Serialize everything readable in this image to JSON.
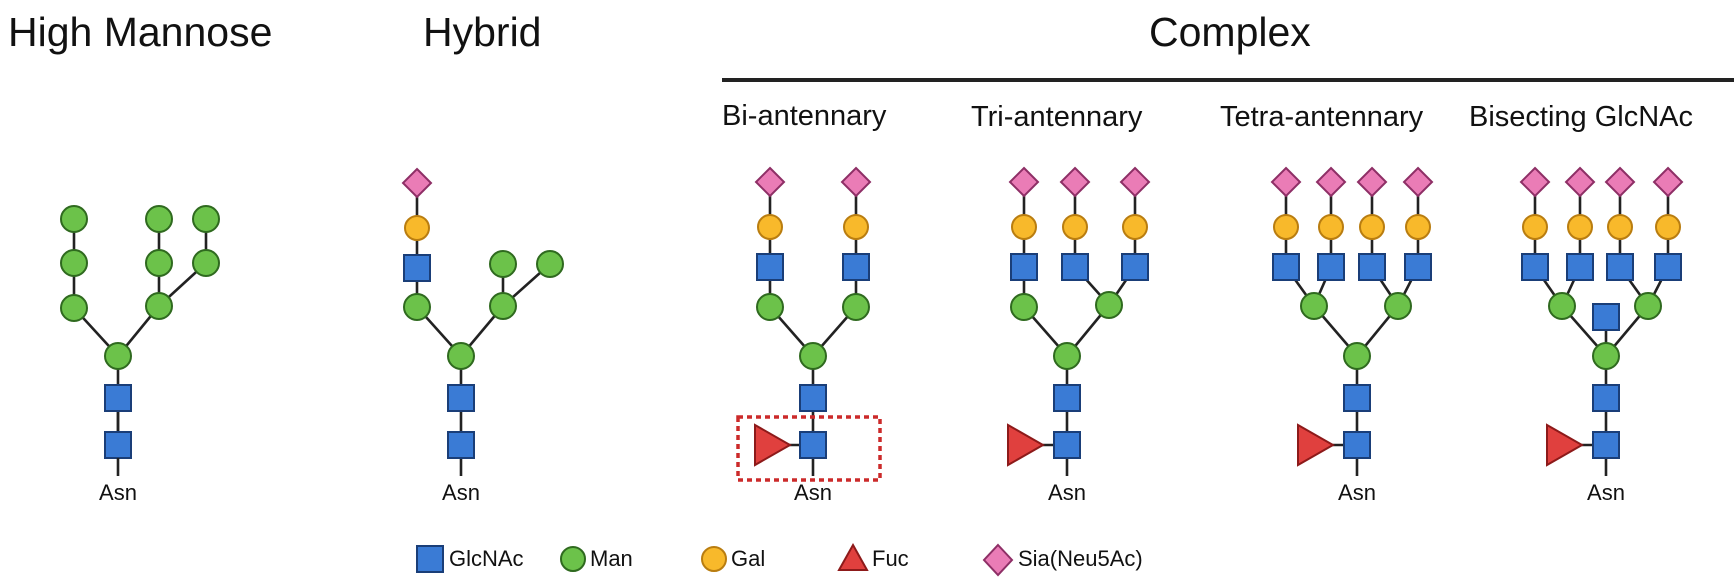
{
  "titles": {
    "high_mannose": "High Mannose",
    "hybrid": "Hybrid",
    "complex": "Complex"
  },
  "subtitles": {
    "bi": "Bi-antennary",
    "tri": "Tri-antennary",
    "tetra": "Tetra-antennary",
    "bisecting": "Bisecting GlcNAc"
  },
  "asn_label": "Asn",
  "legend": {
    "glcnac": "GlcNAc",
    "man": "Man",
    "gal": "Gal",
    "fuc": "Fuc",
    "sia": "Sia(Neu5Ac)"
  },
  "colors": {
    "glcnac": "#3a7bd5",
    "man": "#6cc24a",
    "gal": "#f8b92b",
    "fuc": "#e0403e",
    "sia": "#ea7cb6",
    "highlight_box": "#cc2a2a"
  }
}
